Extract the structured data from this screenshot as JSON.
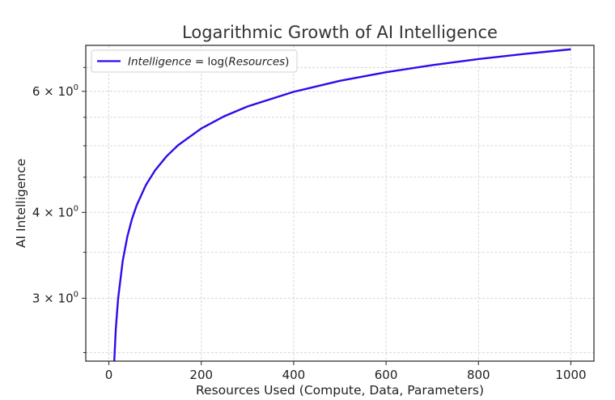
{
  "chart_data": {
    "type": "line",
    "title": "Logarithmic Growth of AI Intelligence",
    "xlabel": "Resources Used (Compute, Data, Parameters)",
    "ylabel": "AI Intelligence",
    "y_scale": "log",
    "xlim": [
      -50,
      1050
    ],
    "ylim": [
      2.43,
      7.0
    ],
    "grid": true,
    "legend_position": "top-left",
    "x_ticks": [
      0,
      200,
      400,
      600,
      800,
      1000
    ],
    "x_tick_labels": [
      "0",
      "200",
      "400",
      "600",
      "800",
      "1000"
    ],
    "y_ticks": [
      3,
      4,
      6
    ],
    "y_tick_labels": [
      {
        "base": "3 × 10",
        "exp": "0"
      },
      {
        "base": "4 × 10",
        "exp": "0"
      },
      {
        "base": "6 × 10",
        "exp": "0"
      }
    ],
    "series": [
      {
        "name": "Intelligence = log(Resources)",
        "color": "#2f0bea",
        "x": [
          10,
          15,
          20,
          30,
          40,
          50,
          60,
          80,
          100,
          125,
          150,
          200,
          250,
          300,
          400,
          500,
          600,
          700,
          800,
          900,
          1000
        ],
        "y": [
          2.303,
          2.708,
          2.996,
          3.401,
          3.689,
          3.912,
          4.094,
          4.382,
          4.605,
          4.828,
          5.011,
          5.298,
          5.521,
          5.704,
          5.991,
          6.215,
          6.397,
          6.551,
          6.685,
          6.802,
          6.908
        ]
      }
    ]
  }
}
